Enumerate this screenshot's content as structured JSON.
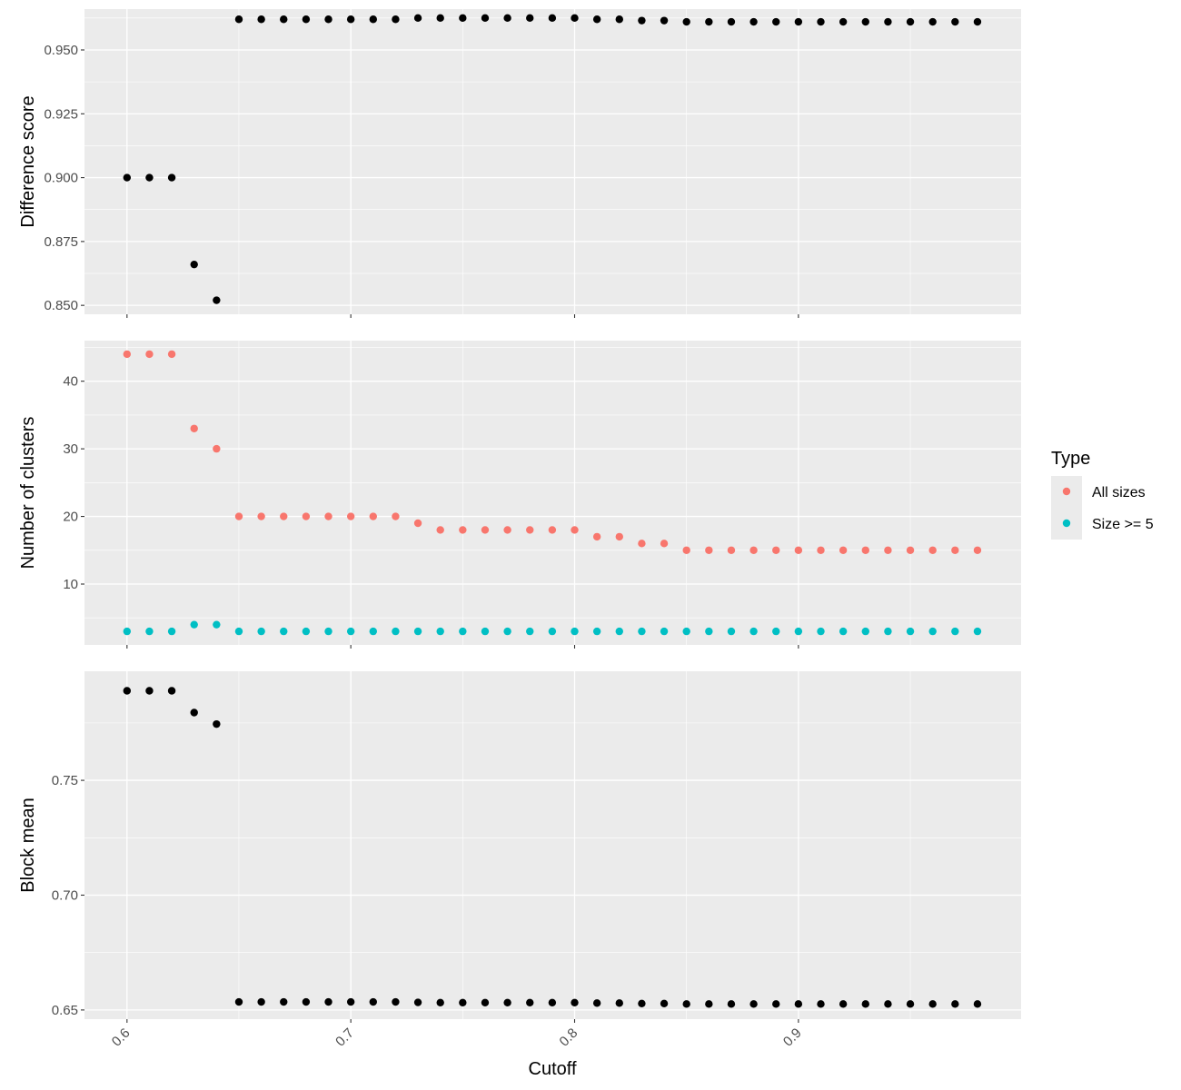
{
  "chart_data": {
    "type": "scatter",
    "x_axis": {
      "label": "Cutoff",
      "range": [
        0.581,
        0.9995
      ],
      "ticks": [
        0.6,
        0.7,
        0.8,
        0.9
      ],
      "tick_labels": [
        "0.6",
        "0.7",
        "0.8",
        "0.9"
      ],
      "grid": true
    },
    "x": [
      0.6,
      0.61,
      0.62,
      0.63,
      0.64,
      0.65,
      0.66,
      0.67,
      0.68,
      0.69,
      0.7,
      0.71,
      0.72,
      0.73,
      0.74,
      0.75,
      0.76,
      0.77,
      0.78,
      0.79,
      0.8,
      0.81,
      0.82,
      0.83,
      0.84,
      0.85,
      0.86,
      0.87,
      0.88,
      0.89,
      0.9,
      0.91,
      0.92,
      0.93,
      0.94,
      0.95,
      0.96,
      0.97,
      0.98
    ],
    "legend": {
      "title": "Type",
      "position": "right",
      "entries": [
        {
          "label": "All sizes",
          "color": "#F8766D"
        },
        {
          "label": "Size >= 5",
          "color": "#00BFC4"
        }
      ]
    },
    "panels": [
      {
        "ylabel": "Difference score",
        "ylim": [
          0.8465,
          0.966
        ],
        "yticks": [
          0.85,
          0.875,
          0.9,
          0.925,
          0.95
        ],
        "ytick_labels": [
          "0.850",
          "0.875",
          "0.900",
          "0.925",
          "0.950"
        ],
        "series": [
          {
            "color": "#000000",
            "values": [
              0.9,
              0.9,
              0.9,
              0.866,
              0.852,
              0.962,
              0.962,
              0.962,
              0.962,
              0.962,
              0.962,
              0.962,
              0.962,
              0.9625,
              0.9625,
              0.9625,
              0.9625,
              0.9625,
              0.9625,
              0.9625,
              0.9625,
              0.962,
              0.962,
              0.9615,
              0.9615,
              0.961,
              0.961,
              0.961,
              0.961,
              0.961,
              0.961,
              0.961,
              0.961,
              0.961,
              0.961,
              0.961,
              0.961,
              0.961,
              0.961
            ]
          }
        ]
      },
      {
        "ylabel": "Number of clusters",
        "ylim": [
          1.0,
          46.0
        ],
        "yticks": [
          10,
          20,
          30,
          40
        ],
        "ytick_labels": [
          "10",
          "20",
          "30",
          "40"
        ],
        "series": [
          {
            "name": "All sizes",
            "color": "#F8766D",
            "values": [
              44,
              44,
              44,
              33,
              30,
              20,
              20,
              20,
              20,
              20,
              20,
              20,
              20,
              19,
              18,
              18,
              18,
              18,
              18,
              18,
              18,
              17,
              17,
              16,
              16,
              15,
              15,
              15,
              15,
              15,
              15,
              15,
              15,
              15,
              15,
              15,
              15,
              15,
              15
            ]
          },
          {
            "name": "Size >= 5",
            "color": "#00BFC4",
            "values": [
              3,
              3,
              3,
              4,
              4,
              3,
              3,
              3,
              3,
              3,
              3,
              3,
              3,
              3,
              3,
              3,
              3,
              3,
              3,
              3,
              3,
              3,
              3,
              3,
              3,
              3,
              3,
              3,
              3,
              3,
              3,
              3,
              3,
              3,
              3,
              3,
              3,
              3,
              3
            ]
          }
        ]
      },
      {
        "ylabel": "Block mean",
        "ylim": [
          0.646,
          0.7975
        ],
        "yticks": [
          0.65,
          0.7,
          0.75
        ],
        "ytick_labels": [
          "0.65",
          "0.70",
          "0.75"
        ],
        "series": [
          {
            "color": "#000000",
            "values": [
              0.789,
              0.789,
              0.789,
              0.7795,
              0.7745,
              0.6535,
              0.6535,
              0.6535,
              0.6535,
              0.6535,
              0.6535,
              0.6535,
              0.6535,
              0.6533,
              0.6532,
              0.6532,
              0.6532,
              0.6532,
              0.6532,
              0.6532,
              0.6532,
              0.653,
              0.653,
              0.6528,
              0.6528,
              0.6526,
              0.6526,
              0.6526,
              0.6526,
              0.6526,
              0.6526,
              0.6526,
              0.6526,
              0.6526,
              0.6526,
              0.6526,
              0.6526,
              0.6526,
              0.6526
            ]
          }
        ]
      }
    ]
  }
}
